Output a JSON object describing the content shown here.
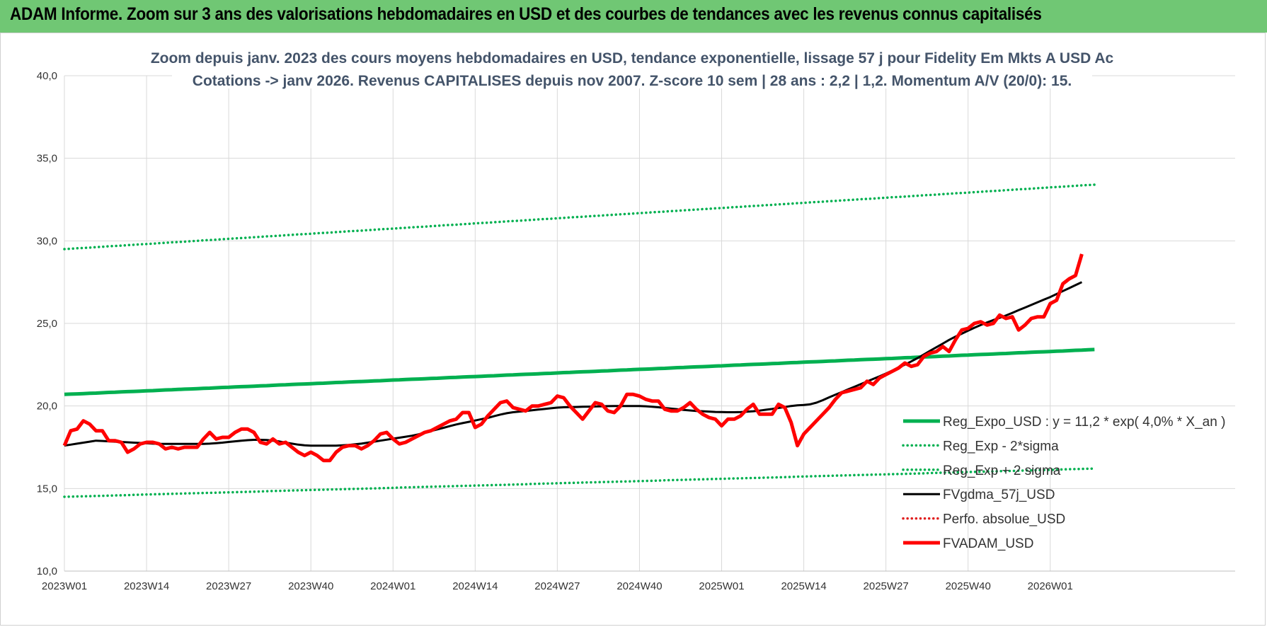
{
  "header": {
    "title": "ADAM Informe. Zoom sur 3 ans des valorisations hebdomadaires en USD et des courbes de tendances avec les revenus connus capitalisés"
  },
  "chart_data": {
    "type": "line",
    "title": "Zoom depuis janv. 2023 des cours moyens hebdomadaires en USD, tendance exponentielle, lissage 57 j pour Fidelity Em Mkts A USD Ac",
    "subtitle": "Cotations -> janv 2026. Revenus CAPITALISES depuis nov 2007. Z-score 10 sem | 28 ans : 2,2 | 1,2. Momentum A/V (20/0): 15.",
    "xlabel": "",
    "ylabel": "",
    "ylim": [
      10,
      40
    ],
    "y_ticks": [
      "10,0",
      "15,0",
      "20,0",
      "25,0",
      "30,0",
      "35,0",
      "40,0"
    ],
    "x_tick_labels": [
      "2023W01",
      "2023W14",
      "2023W27",
      "2023W40",
      "2024W01",
      "2024W14",
      "2024W27",
      "2024W40",
      "2025W01",
      "2025W14",
      "2025W27",
      "2025W40",
      "2026W01"
    ],
    "x_tick_indices": [
      0,
      13,
      26,
      39,
      52,
      65,
      78,
      91,
      104,
      117,
      130,
      143,
      156
    ],
    "x_count": 162,
    "grid": true,
    "legend_position": "bottom-right",
    "series": [
      {
        "name": "Reg_Expo_USD : y = 11,2 * exp( 4,0% *  X_an )",
        "color": "#00b050",
        "style": "solid-thick",
        "values": [
          20.7,
          20.72,
          20.73,
          20.75,
          20.77,
          20.78,
          20.8,
          20.82,
          20.83,
          20.85,
          20.87,
          20.88,
          20.9,
          20.92,
          20.93,
          20.95,
          20.97,
          20.98,
          21.0,
          21.02,
          21.03,
          21.05,
          21.07,
          21.08,
          21.1,
          21.12,
          21.13,
          21.15,
          21.17,
          21.18,
          21.2,
          21.22,
          21.23,
          21.25,
          21.27,
          21.28,
          21.3,
          21.32,
          21.33,
          21.35,
          21.37,
          21.38,
          21.4,
          21.42,
          21.43,
          21.45,
          21.47,
          21.48,
          21.5,
          21.52,
          21.53,
          21.55,
          21.57,
          21.58,
          21.6,
          21.62,
          21.63,
          21.65,
          21.67,
          21.68,
          21.7,
          21.72,
          21.73,
          21.75,
          21.77,
          21.78,
          21.8,
          21.82,
          21.83,
          21.85,
          21.87,
          21.88,
          21.9,
          21.92,
          21.93,
          21.95,
          21.97,
          21.98,
          22.0,
          22.02,
          22.03,
          22.05,
          22.07,
          22.08,
          22.1,
          22.12,
          22.13,
          22.15,
          22.17,
          22.18,
          22.2,
          22.22,
          22.23,
          22.25,
          22.27,
          22.28,
          22.3,
          22.32,
          22.33,
          22.35,
          22.37,
          22.38,
          22.4,
          22.42,
          22.43,
          22.45,
          22.47,
          22.48,
          22.5,
          22.52,
          22.53,
          22.55,
          22.57,
          22.58,
          22.6,
          22.62,
          22.63,
          22.65,
          22.67,
          22.68,
          22.7,
          22.72,
          22.73,
          22.75,
          22.77,
          22.78,
          22.8,
          22.82,
          22.83,
          22.85,
          22.87,
          22.88,
          22.9,
          22.92,
          22.93,
          22.95,
          22.97,
          22.98,
          23.0,
          23.02,
          23.03,
          23.05,
          23.07,
          23.08,
          23.1,
          23.12,
          23.13,
          23.15,
          23.17,
          23.18,
          23.2,
          23.22,
          23.23,
          23.25,
          23.27,
          23.28,
          23.3,
          23.32,
          23.33,
          23.35,
          23.37,
          23.38,
          23.4,
          23.42
        ]
      },
      {
        "name": "Reg_Exp - 2*sigma",
        "color": "#00b050",
        "style": "dotted",
        "values": [
          14.5,
          14.51,
          14.52,
          14.53,
          14.54,
          14.55,
          14.56,
          14.57,
          14.58,
          14.59,
          14.6,
          14.62,
          14.63,
          14.64,
          14.65,
          14.66,
          14.67,
          14.68,
          14.69,
          14.7,
          14.71,
          14.72,
          14.73,
          14.74,
          14.75,
          14.76,
          14.77,
          14.78,
          14.79,
          14.8,
          14.81,
          14.82,
          14.84,
          14.85,
          14.86,
          14.87,
          14.88,
          14.89,
          14.9,
          14.91,
          14.92,
          14.93,
          14.94,
          14.95,
          14.96,
          14.97,
          14.98,
          14.99,
          15.0,
          15.01,
          15.02,
          15.03,
          15.04,
          15.06,
          15.07,
          15.08,
          15.09,
          15.1,
          15.11,
          15.12,
          15.13,
          15.14,
          15.15,
          15.16,
          15.17,
          15.18,
          15.19,
          15.2,
          15.21,
          15.22,
          15.23,
          15.24,
          15.25,
          15.26,
          15.28,
          15.29,
          15.3,
          15.31,
          15.32,
          15.33,
          15.34,
          15.35,
          15.36,
          15.37,
          15.38,
          15.39,
          15.4,
          15.41,
          15.42,
          15.43,
          15.44,
          15.45,
          15.46,
          15.47,
          15.48,
          15.5,
          15.51,
          15.52,
          15.53,
          15.54,
          15.55,
          15.56,
          15.57,
          15.58,
          15.59,
          15.6,
          15.61,
          15.62,
          15.63,
          15.64,
          15.65,
          15.66,
          15.67,
          15.68,
          15.69,
          15.7,
          15.72,
          15.73,
          15.74,
          15.75,
          15.76,
          15.77,
          15.78,
          15.79,
          15.8,
          15.81,
          15.82,
          15.83,
          15.84,
          15.85,
          15.86,
          15.87,
          15.88,
          15.89,
          15.9,
          15.91,
          15.92,
          15.94,
          15.95,
          15.96,
          15.97,
          15.98,
          15.99,
          16.0,
          16.01,
          16.02,
          16.03,
          16.04,
          16.05,
          16.06,
          16.07,
          16.08,
          16.09,
          16.1,
          16.11,
          16.12,
          16.13,
          16.14,
          16.16,
          16.17,
          16.18,
          16.19,
          16.2,
          16.21
        ]
      },
      {
        "name": "Reg_Exp + 2 sigma",
        "color": "#00b050",
        "style": "dotted",
        "values": [
          29.5,
          29.52,
          29.55,
          29.57,
          29.59,
          29.62,
          29.64,
          29.67,
          29.69,
          29.71,
          29.74,
          29.76,
          29.79,
          29.81,
          29.83,
          29.86,
          29.88,
          29.91,
          29.93,
          29.95,
          29.98,
          30.0,
          30.03,
          30.05,
          30.07,
          30.1,
          30.12,
          30.15,
          30.17,
          30.19,
          30.22,
          30.24,
          30.27,
          30.29,
          30.31,
          30.34,
          30.36,
          30.39,
          30.41,
          30.43,
          30.46,
          30.48,
          30.5,
          30.53,
          30.55,
          30.58,
          30.6,
          30.62,
          30.65,
          30.67,
          30.7,
          30.72,
          30.74,
          30.77,
          30.79,
          30.82,
          30.84,
          30.86,
          30.89,
          30.91,
          30.94,
          30.96,
          30.98,
          31.01,
          31.03,
          31.06,
          31.08,
          31.1,
          31.13,
          31.15,
          31.18,
          31.2,
          31.22,
          31.25,
          31.27,
          31.3,
          31.32,
          31.34,
          31.37,
          31.39,
          31.42,
          31.44,
          31.46,
          31.49,
          31.51,
          31.53,
          31.56,
          31.58,
          31.61,
          31.63,
          31.65,
          31.68,
          31.7,
          31.73,
          31.75,
          31.77,
          31.8,
          31.82,
          31.85,
          31.87,
          31.89,
          31.92,
          31.94,
          31.97,
          31.99,
          32.01,
          32.04,
          32.06,
          32.09,
          32.11,
          32.13,
          32.16,
          32.18,
          32.21,
          32.23,
          32.25,
          32.28,
          32.3,
          32.33,
          32.35,
          32.37,
          32.4,
          32.42,
          32.45,
          32.47,
          32.49,
          32.52,
          32.54,
          32.56,
          32.59,
          32.61,
          32.64,
          32.66,
          32.68,
          32.71,
          32.73,
          32.76,
          32.78,
          32.8,
          32.83,
          32.85,
          32.88,
          32.9,
          32.92,
          32.95,
          32.97,
          33.0,
          33.02,
          33.04,
          33.07,
          33.09,
          33.12,
          33.14,
          33.16,
          33.19,
          33.21,
          33.24,
          33.26,
          33.28,
          33.31,
          33.33,
          33.36,
          33.38,
          33.4
        ]
      },
      {
        "name": "FVgdma_57j_USD",
        "color": "#000000",
        "style": "solid",
        "values": [
          17.6,
          17.66,
          17.72,
          17.78,
          17.84,
          17.9,
          17.88,
          17.86,
          17.84,
          17.82,
          17.8,
          17.78,
          17.76,
          17.74,
          17.72,
          17.7,
          17.7,
          17.7,
          17.7,
          17.7,
          17.7,
          17.7,
          17.7,
          17.72,
          17.75,
          17.78,
          17.82,
          17.86,
          17.9,
          17.93,
          17.95,
          17.95,
          17.94,
          17.9,
          17.85,
          17.78,
          17.72,
          17.66,
          17.62,
          17.6,
          17.6,
          17.6,
          17.6,
          17.6,
          17.62,
          17.64,
          17.68,
          17.72,
          17.78,
          17.84,
          17.9,
          17.96,
          18.02,
          18.08,
          18.14,
          18.2,
          18.28,
          18.38,
          18.48,
          18.58,
          18.68,
          18.78,
          18.88,
          18.96,
          19.04,
          19.12,
          19.2,
          19.28,
          19.38,
          19.48,
          19.56,
          19.62,
          19.66,
          19.7,
          19.74,
          19.78,
          19.82,
          19.86,
          19.9,
          19.92,
          19.93,
          19.94,
          19.95,
          19.96,
          19.97,
          19.98,
          19.99,
          20.0,
          20.0,
          20.0,
          20.0,
          20.0,
          19.98,
          19.95,
          19.92,
          19.88,
          19.84,
          19.8,
          19.76,
          19.73,
          19.7,
          19.68,
          19.66,
          19.64,
          19.63,
          19.62,
          19.62,
          19.63,
          19.65,
          19.68,
          19.72,
          19.77,
          19.82,
          19.88,
          19.94,
          20.0,
          20.04,
          20.06,
          20.1,
          20.2,
          20.35,
          20.52,
          20.68,
          20.84,
          21.0,
          21.16,
          21.32,
          21.48,
          21.64,
          21.8,
          21.96,
          22.14,
          22.32,
          22.5,
          22.7,
          22.9,
          23.12,
          23.34,
          23.56,
          23.78,
          24.0,
          24.2,
          24.38,
          24.56,
          24.74,
          24.9,
          25.06,
          25.2,
          25.34,
          25.48,
          25.64,
          25.8,
          25.96,
          26.12,
          26.28,
          26.44,
          26.6,
          26.78,
          26.96,
          27.14,
          27.32,
          27.5
        ]
      },
      {
        "name": "Perfo. absolue_USD",
        "color": "#e02020",
        "style": "dotted",
        "values": []
      },
      {
        "name": "FVADAM_USD",
        "color": "#ff0000",
        "style": "solid-thick",
        "values": [
          17.6,
          18.5,
          18.6,
          19.1,
          18.9,
          18.5,
          18.5,
          17.9,
          17.9,
          17.8,
          17.2,
          17.4,
          17.7,
          17.8,
          17.8,
          17.7,
          17.4,
          17.5,
          17.4,
          17.5,
          17.5,
          17.5,
          18.0,
          18.4,
          18.0,
          18.1,
          18.1,
          18.4,
          18.6,
          18.6,
          18.4,
          17.8,
          17.7,
          18.0,
          17.7,
          17.8,
          17.5,
          17.2,
          17.0,
          17.2,
          17.0,
          16.7,
          16.7,
          17.2,
          17.5,
          17.6,
          17.6,
          17.4,
          17.6,
          17.9,
          18.3,
          18.4,
          18.0,
          17.7,
          17.8,
          18.0,
          18.2,
          18.4,
          18.5,
          18.7,
          18.9,
          19.1,
          19.2,
          19.6,
          19.6,
          18.7,
          18.9,
          19.4,
          19.8,
          20.2,
          20.3,
          19.9,
          19.8,
          19.7,
          20.0,
          20.0,
          20.1,
          20.2,
          20.6,
          20.5,
          20.0,
          19.6,
          19.2,
          19.7,
          20.2,
          20.1,
          19.7,
          19.6,
          20.0,
          20.7,
          20.7,
          20.6,
          20.4,
          20.3,
          20.3,
          19.8,
          19.7,
          19.7,
          19.9,
          20.2,
          19.8,
          19.5,
          19.3,
          19.2,
          18.8,
          19.2,
          19.2,
          19.4,
          19.8,
          20.1,
          19.5,
          19.5,
          19.5,
          20.1,
          19.9,
          19.0,
          17.6,
          18.3,
          18.7,
          19.1,
          19.5,
          19.9,
          20.4,
          20.8,
          20.9,
          21.0,
          21.1,
          21.5,
          21.3,
          21.7,
          21.9,
          22.1,
          22.3,
          22.6,
          22.4,
          22.5,
          23.0,
          23.2,
          23.3,
          23.6,
          23.3,
          24.0,
          24.6,
          24.7,
          25.0,
          25.1,
          24.9,
          25.0,
          25.5,
          25.3,
          25.4,
          24.6,
          24.9,
          25.3,
          25.4,
          25.4,
          26.2,
          26.4,
          27.4,
          27.7,
          27.9,
          29.2
        ]
      }
    ]
  }
}
